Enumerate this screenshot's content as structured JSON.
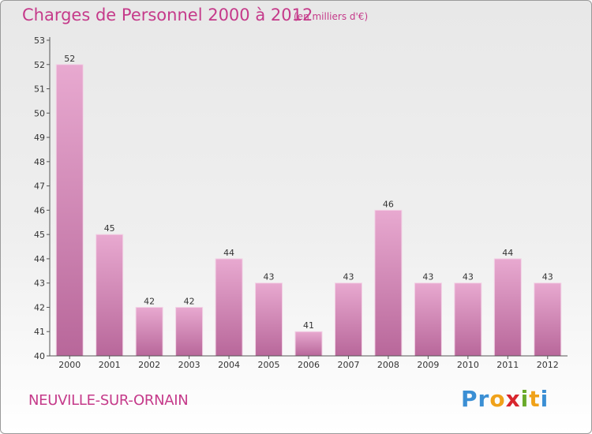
{
  "title": "Charges de Personnel 2000 à 2012",
  "subtitle": "(en milliers d'€)",
  "commune": "NEUVILLE-SUR-ORNAIN",
  "logo": {
    "text": "Proxiti",
    "letters": [
      {
        "ch": "P",
        "color": "#3b8fd4"
      },
      {
        "ch": "r",
        "color": "#3b8fd4"
      },
      {
        "ch": "o",
        "color": "#f0a21a"
      },
      {
        "ch": "x",
        "color": "#d8262e"
      },
      {
        "ch": "i",
        "color": "#6aaa2a"
      },
      {
        "ch": "t",
        "color": "#f0a21a"
      },
      {
        "ch": "i",
        "color": "#3b8fd4"
      }
    ]
  },
  "colors": {
    "accent": "#c53a8a",
    "bar_light": "#e8a9d0",
    "bar_dark": "#b8679a"
  },
  "chart_data": {
    "type": "bar",
    "categories": [
      "2000",
      "2001",
      "2002",
      "2003",
      "2004",
      "2005",
      "2006",
      "2007",
      "2008",
      "2009",
      "2010",
      "2011",
      "2012"
    ],
    "values": [
      52,
      45,
      42,
      42,
      44,
      43,
      41,
      43,
      46,
      43,
      43,
      44,
      43
    ],
    "ylim": [
      40,
      53
    ],
    "yticks": [
      40,
      41,
      42,
      43,
      44,
      45,
      46,
      47,
      48,
      49,
      50,
      51,
      52,
      53
    ],
    "grid": false,
    "legend": "none"
  }
}
